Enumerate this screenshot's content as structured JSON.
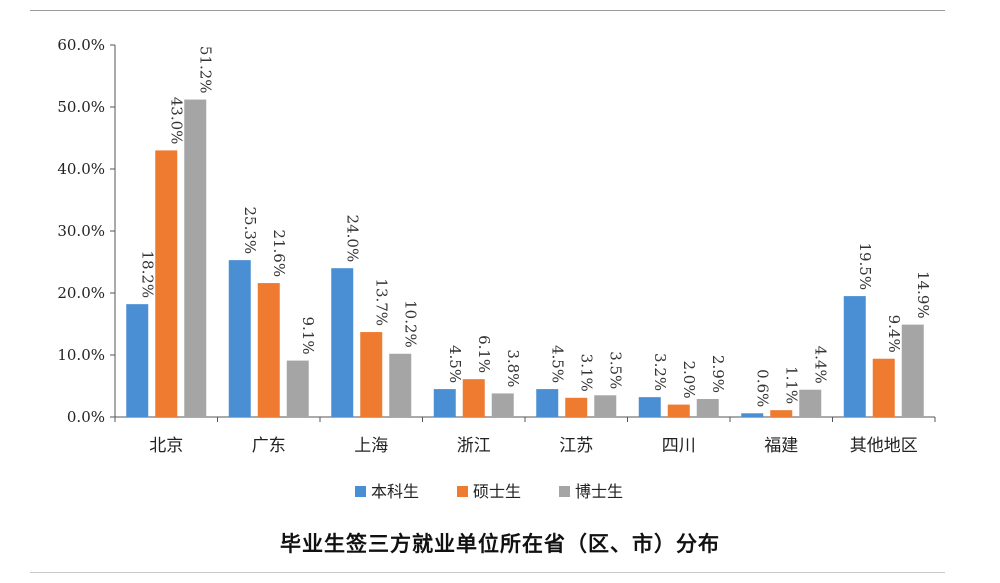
{
  "chart_data": {
    "type": "bar",
    "title": "毕业生签三方就业单位所在省（区、市）分布",
    "categories": [
      "北京",
      "广东",
      "上海",
      "浙江",
      "江苏",
      "四川",
      "福建",
      "其他地区"
    ],
    "series": [
      {
        "name": "本科生",
        "color": "#4a8fd4",
        "values": [
          18.2,
          25.3,
          24.0,
          4.5,
          4.5,
          3.2,
          0.6,
          19.5
        ]
      },
      {
        "name": "硕士生",
        "color": "#ee7b30",
        "values": [
          43.0,
          21.6,
          13.7,
          6.1,
          3.1,
          2.0,
          1.1,
          9.4
        ]
      },
      {
        "name": "博士生",
        "color": "#a5a5a5",
        "values": [
          51.2,
          9.1,
          10.2,
          3.8,
          3.5,
          2.9,
          4.4,
          14.9
        ]
      }
    ],
    "ylim": [
      0,
      60
    ],
    "yticks": [
      "0.0%",
      "10.0%",
      "20.0%",
      "30.0%",
      "40.0%",
      "50.0%",
      "60.0%"
    ],
    "value_suffix": "%",
    "legend_position": "bottom",
    "grid": false
  }
}
